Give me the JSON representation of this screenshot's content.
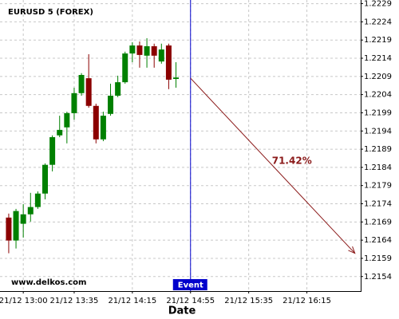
{
  "chart_data": {
    "type": "candlestick",
    "title": "EURUSD 5 (FOREX)",
    "watermark": "www.delkos.com",
    "x_label": "Date",
    "up_color": "#008000",
    "down_color": "#8b0000",
    "grid": true,
    "x": [
      "21/12 12:50",
      "21/12 12:55",
      "21/12 13:00",
      "21/12 13:05",
      "21/12 13:10",
      "21/12 13:15",
      "21/12 13:20",
      "21/12 13:25",
      "21/12 13:30",
      "21/12 13:35",
      "21/12 13:40",
      "21/12 13:45",
      "21/12 13:50",
      "21/12 13:55",
      "21/12 14:00",
      "21/12 14:05",
      "21/12 14:10",
      "21/12 14:15",
      "21/12 14:20",
      "21/12 14:25",
      "21/12 14:30",
      "21/12 14:35",
      "21/12 14:40",
      "21/12 14:45"
    ],
    "open": [
      1.21702,
      1.21639,
      1.21685,
      1.21711,
      1.21731,
      1.21768,
      1.21847,
      1.21928,
      1.2195,
      1.21989,
      1.22044,
      1.22085,
      1.22009,
      1.21917,
      1.21987,
      1.22037,
      1.22074,
      1.22153,
      1.22175,
      1.22147,
      1.22173,
      1.22131,
      1.22175,
      1.22083
    ],
    "high": [
      1.21713,
      1.21726,
      1.21739,
      1.2177,
      1.21774,
      1.21851,
      1.21928,
      1.21982,
      1.21993,
      1.22059,
      1.22099,
      1.22151,
      1.22015,
      1.21993,
      1.2207,
      1.22092,
      1.22158,
      1.22184,
      1.22186,
      1.22195,
      1.2218,
      1.2218,
      1.2218,
      1.22129
    ],
    "low": [
      1.21604,
      1.21617,
      1.21647,
      1.21691,
      1.21726,
      1.21752,
      1.21829,
      1.21923,
      1.21906,
      1.21971,
      1.22037,
      1.22004,
      1.21906,
      1.21912,
      1.21982,
      1.22033,
      1.2207,
      1.22129,
      1.22114,
      1.22114,
      1.22114,
      1.22125,
      1.22055,
      1.22059
    ],
    "close": [
      1.21639,
      1.2172,
      1.21711,
      1.21731,
      1.21768,
      1.21847,
      1.21923,
      1.21943,
      1.21989,
      1.22044,
      1.22094,
      1.22009,
      1.21917,
      1.21982,
      1.22037,
      1.22074,
      1.22153,
      1.22175,
      1.22149,
      1.22173,
      1.22147,
      1.22164,
      1.22081,
      1.22087
    ],
    "xlim": [
      "21/12 12:44",
      "21/12 16:52"
    ],
    "xticks": [
      "21/12 13:00",
      "21/12 13:35",
      "21/12 14:15",
      "21/12 14:55",
      "21/12 15:35",
      "21/12 16:15"
    ],
    "ylim": [
      1.215,
      1.223
    ],
    "yticks": [
      1.2154,
      1.2159,
      1.2164,
      1.2169,
      1.2174,
      1.2179,
      1.2184,
      1.2189,
      1.2194,
      1.2199,
      1.2204,
      1.2209,
      1.2214,
      1.2219,
      1.2224,
      1.2229
    ],
    "event": {
      "label": "Event",
      "x": "21/12 14:55",
      "color": "#0000cc"
    },
    "prediction": {
      "label": "71.42%",
      "x": [
        "21/12 14:55",
        "21/12 16:48"
      ],
      "values": [
        1.22085,
        1.21604
      ],
      "color": "#8b1a1a"
    }
  }
}
